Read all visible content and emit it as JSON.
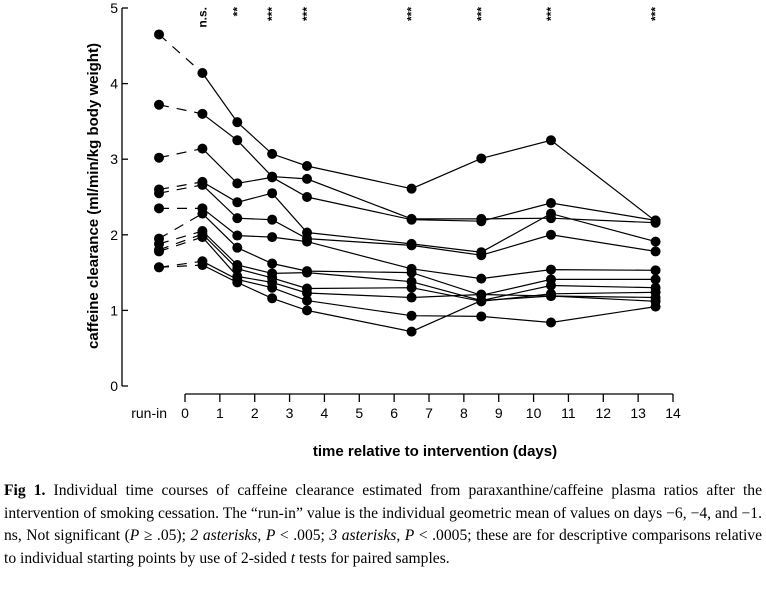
{
  "chart_data": {
    "type": "line",
    "xlabel": "time relative to intervention (days)",
    "ylabel": "caffeine clearance (ml/min/kg body weight)",
    "xlim": [
      0,
      14
    ],
    "ylim": [
      0,
      5
    ],
    "x_ticks": [
      "0",
      "1",
      "2",
      "3",
      "4",
      "5",
      "6",
      "7",
      "8",
      "9",
      "10",
      "11",
      "12",
      "13",
      "14"
    ],
    "y_ticks": [
      "0",
      "1",
      "2",
      "3",
      "4",
      "5"
    ],
    "baseline_label": "run-in",
    "significance": [
      {
        "x": 0.5,
        "label": "n.s."
      },
      {
        "x": 1.5,
        "label": "**"
      },
      {
        "x": 2.5,
        "label": "***"
      },
      {
        "x": 3.5,
        "label": "***"
      },
      {
        "x": 6.5,
        "label": "***"
      },
      {
        "x": 8.5,
        "label": "***"
      },
      {
        "x": 10.5,
        "label": "***"
      },
      {
        "x": 13.5,
        "label": "***"
      }
    ],
    "series": [
      {
        "runin": 4.65,
        "points": [
          [
            0.5,
            4.14
          ],
          [
            1.5,
            3.49
          ],
          [
            2.5,
            3.07
          ],
          [
            3.5,
            2.91
          ],
          [
            6.5,
            2.61
          ],
          [
            8.5,
            3.01
          ],
          [
            10.5,
            3.25
          ],
          [
            13.5,
            2.18
          ]
        ]
      },
      {
        "runin": 3.72,
        "points": [
          [
            0.5,
            3.6
          ],
          [
            1.5,
            3.25
          ],
          [
            2.5,
            2.77
          ],
          [
            3.5,
            2.74
          ],
          [
            6.5,
            2.21
          ],
          [
            8.5,
            2.21
          ],
          [
            10.5,
            2.22
          ],
          [
            13.5,
            2.16
          ]
        ]
      },
      {
        "runin": 3.02,
        "points": [
          [
            0.5,
            3.14
          ],
          [
            1.5,
            2.68
          ],
          [
            2.5,
            2.76
          ],
          [
            3.5,
            2.5
          ],
          [
            6.5,
            2.2
          ],
          [
            8.5,
            2.18
          ],
          [
            10.5,
            2.42
          ],
          [
            13.5,
            2.19
          ]
        ]
      },
      {
        "runin": 2.6,
        "points": [
          [
            0.5,
            2.7
          ],
          [
            1.5,
            2.43
          ],
          [
            2.5,
            2.55
          ],
          [
            3.5,
            2.03
          ],
          [
            6.5,
            1.88
          ],
          [
            8.5,
            1.77
          ],
          [
            10.5,
            2.28
          ],
          [
            13.5,
            1.91
          ]
        ]
      },
      {
        "runin": 2.55,
        "points": [
          [
            0.5,
            2.66
          ],
          [
            1.5,
            2.22
          ],
          [
            2.5,
            2.2
          ],
          [
            3.5,
            1.95
          ],
          [
            6.5,
            1.86
          ],
          [
            8.5,
            1.73
          ],
          [
            10.5,
            2.0
          ],
          [
            13.5,
            1.78
          ]
        ]
      },
      {
        "runin": 2.35,
        "points": [
          [
            0.5,
            2.35
          ],
          [
            1.5,
            1.99
          ],
          [
            2.5,
            1.97
          ],
          [
            3.5,
            1.91
          ],
          [
            6.5,
            1.55
          ],
          [
            8.5,
            1.42
          ],
          [
            10.5,
            1.54
          ],
          [
            13.5,
            1.53
          ]
        ]
      },
      {
        "runin": 1.95,
        "points": [
          [
            0.5,
            2.28
          ],
          [
            1.5,
            1.83
          ],
          [
            2.5,
            1.62
          ],
          [
            3.5,
            1.52
          ],
          [
            6.5,
            1.5
          ],
          [
            8.5,
            1.2
          ],
          [
            10.5,
            1.41
          ],
          [
            13.5,
            1.41
          ]
        ]
      },
      {
        "runin": 1.88,
        "points": [
          [
            0.5,
            2.05
          ],
          [
            1.5,
            1.6
          ],
          [
            2.5,
            1.49
          ],
          [
            3.5,
            1.5
          ],
          [
            6.5,
            1.38
          ],
          [
            8.5,
            1.13
          ],
          [
            10.5,
            1.33
          ],
          [
            13.5,
            1.3
          ]
        ]
      },
      {
        "runin": 1.8,
        "points": [
          [
            0.5,
            2.01
          ],
          [
            1.5,
            1.55
          ],
          [
            2.5,
            1.43
          ],
          [
            3.5,
            1.29
          ],
          [
            6.5,
            1.3
          ],
          [
            8.5,
            1.12
          ],
          [
            10.5,
            1.22
          ],
          [
            13.5,
            1.24
          ]
        ]
      },
      {
        "runin": 1.78,
        "points": [
          [
            0.5,
            1.97
          ],
          [
            1.5,
            1.45
          ],
          [
            2.5,
            1.37
          ],
          [
            3.5,
            1.23
          ],
          [
            6.5,
            1.17
          ],
          [
            8.5,
            1.21
          ],
          [
            10.5,
            1.19
          ],
          [
            13.5,
            1.17
          ]
        ]
      },
      {
        "runin": 1.57,
        "points": [
          [
            0.5,
            1.65
          ],
          [
            1.5,
            1.41
          ],
          [
            2.5,
            1.3
          ],
          [
            3.5,
            1.13
          ],
          [
            6.5,
            0.93
          ],
          [
            8.5,
            0.92
          ],
          [
            10.5,
            0.84
          ],
          [
            13.5,
            1.05
          ]
        ]
      },
      {
        "runin": 1.57,
        "points": [
          [
            0.5,
            1.6
          ],
          [
            1.5,
            1.37
          ],
          [
            2.5,
            1.16
          ],
          [
            3.5,
            1.0
          ],
          [
            6.5,
            0.72
          ],
          [
            8.5,
            1.13
          ],
          [
            10.5,
            1.19
          ],
          [
            13.5,
            1.12
          ]
        ]
      }
    ]
  },
  "caption": {
    "label": "Fig 1.",
    "part1": " Individual time courses of caffeine clearance estimated from paraxanthine/caffeine plasma ratios after the intervention of smoking cessation. The “run-in” value is the individual geometric mean of values on days −6, −4, and −1. ns, Not significant (",
    "p1": "P",
    "part2": " ≥ .05); ",
    "two_asterisks": "2 asterisks",
    "part3": ", ",
    "p2": "P",
    "part4": " < .005; ",
    "three_asterisks": "3 asterisks",
    "part5": ", ",
    "p3": "P",
    "part6": " < .0005; these are for descriptive comparisons relative to individual starting points by use of 2-sided ",
    "t": "t",
    "part7": " tests for paired samples."
  }
}
